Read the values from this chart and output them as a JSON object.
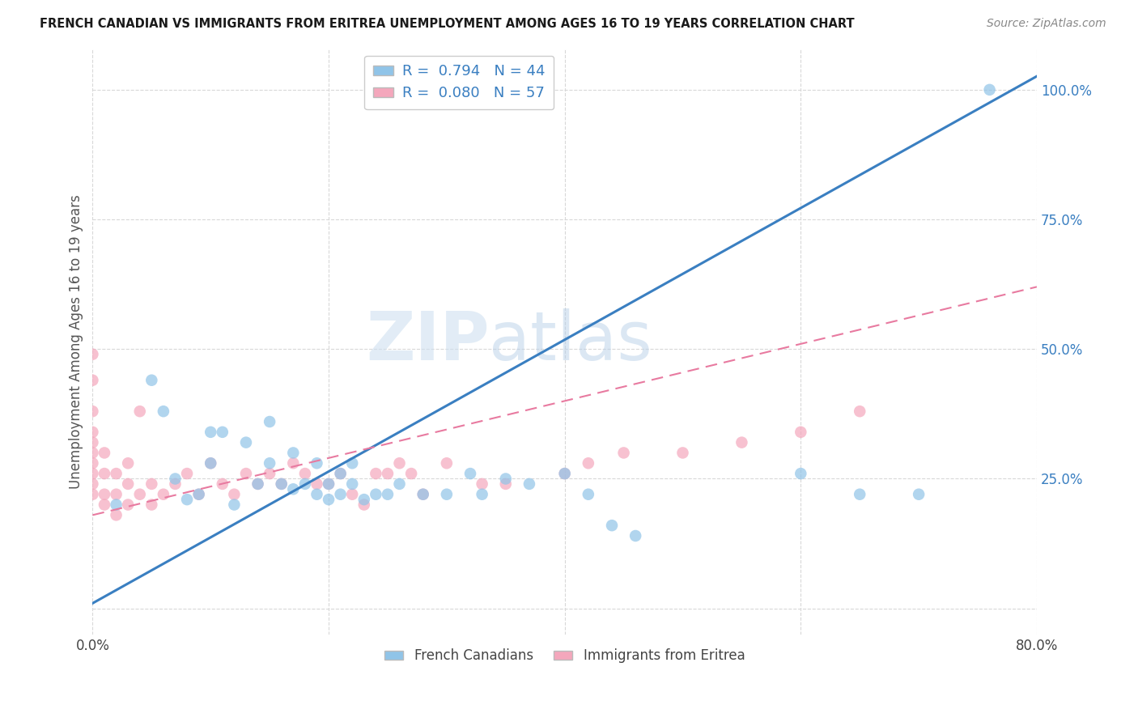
{
  "title": "FRENCH CANADIAN VS IMMIGRANTS FROM ERITREA UNEMPLOYMENT AMONG AGES 16 TO 19 YEARS CORRELATION CHART",
  "source": "Source: ZipAtlas.com",
  "ylabel": "Unemployment Among Ages 16 to 19 years",
  "r_blue": 0.794,
  "n_blue": 44,
  "r_pink": 0.08,
  "n_pink": 57,
  "xmin": 0.0,
  "xmax": 0.8,
  "ymin": -0.05,
  "ymax": 1.08,
  "blue_line_slope": 1.27,
  "blue_line_intercept": 0.01,
  "pink_line_slope": 0.55,
  "pink_line_intercept": 0.18,
  "watermark_zip": "ZIP",
  "watermark_atlas": "atlas",
  "blue_color": "#90c4e8",
  "pink_color": "#f4a7bc",
  "blue_line_color": "#3a7fc1",
  "pink_line_color": "#e87aa0",
  "legend1_label": "French Canadians",
  "legend2_label": "Immigrants from Eritrea",
  "blue_scatter_x": [
    0.02,
    0.05,
    0.06,
    0.07,
    0.08,
    0.09,
    0.1,
    0.1,
    0.11,
    0.12,
    0.13,
    0.14,
    0.15,
    0.15,
    0.16,
    0.17,
    0.17,
    0.18,
    0.19,
    0.19,
    0.2,
    0.2,
    0.21,
    0.21,
    0.22,
    0.22,
    0.23,
    0.24,
    0.25,
    0.26,
    0.28,
    0.3,
    0.32,
    0.33,
    0.35,
    0.37,
    0.4,
    0.42,
    0.44,
    0.46,
    0.6,
    0.65,
    0.7,
    0.76
  ],
  "blue_scatter_y": [
    0.2,
    0.44,
    0.38,
    0.25,
    0.21,
    0.22,
    0.34,
    0.28,
    0.34,
    0.2,
    0.32,
    0.24,
    0.28,
    0.36,
    0.24,
    0.23,
    0.3,
    0.24,
    0.22,
    0.28,
    0.21,
    0.24,
    0.22,
    0.26,
    0.24,
    0.28,
    0.21,
    0.22,
    0.22,
    0.24,
    0.22,
    0.22,
    0.26,
    0.22,
    0.25,
    0.24,
    0.26,
    0.22,
    0.16,
    0.14,
    0.26,
    0.22,
    0.22,
    1.0
  ],
  "pink_scatter_x": [
    0.0,
    0.0,
    0.0,
    0.0,
    0.0,
    0.0,
    0.0,
    0.0,
    0.0,
    0.0,
    0.01,
    0.01,
    0.01,
    0.01,
    0.02,
    0.02,
    0.02,
    0.03,
    0.03,
    0.03,
    0.04,
    0.04,
    0.05,
    0.05,
    0.06,
    0.07,
    0.08,
    0.09,
    0.1,
    0.11,
    0.12,
    0.13,
    0.14,
    0.15,
    0.16,
    0.17,
    0.18,
    0.19,
    0.2,
    0.21,
    0.22,
    0.23,
    0.24,
    0.25,
    0.26,
    0.27,
    0.28,
    0.3,
    0.33,
    0.35,
    0.4,
    0.42,
    0.45,
    0.5,
    0.55,
    0.6,
    0.65
  ],
  "pink_scatter_y": [
    0.22,
    0.24,
    0.26,
    0.28,
    0.3,
    0.32,
    0.34,
    0.38,
    0.44,
    0.49,
    0.2,
    0.22,
    0.26,
    0.3,
    0.18,
    0.22,
    0.26,
    0.2,
    0.24,
    0.28,
    0.22,
    0.38,
    0.2,
    0.24,
    0.22,
    0.24,
    0.26,
    0.22,
    0.28,
    0.24,
    0.22,
    0.26,
    0.24,
    0.26,
    0.24,
    0.28,
    0.26,
    0.24,
    0.24,
    0.26,
    0.22,
    0.2,
    0.26,
    0.26,
    0.28,
    0.26,
    0.22,
    0.28,
    0.24,
    0.24,
    0.26,
    0.28,
    0.3,
    0.3,
    0.32,
    0.34,
    0.38
  ],
  "background_color": "#ffffff",
  "grid_color": "#d8d8d8"
}
